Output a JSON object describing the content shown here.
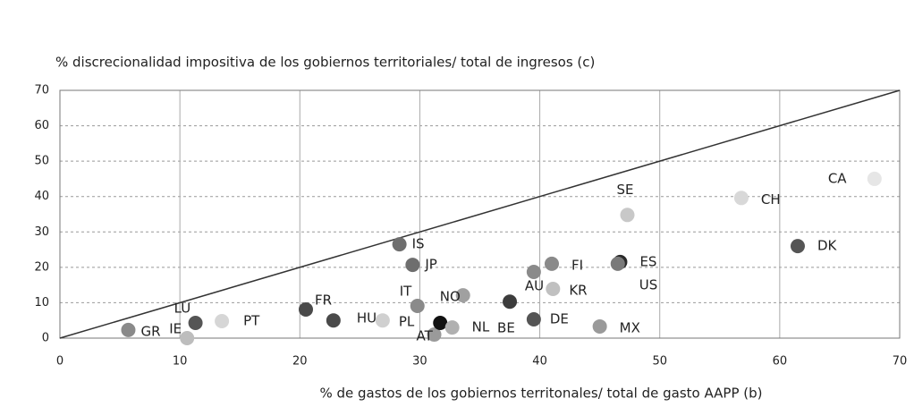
{
  "chart_data": {
    "type": "scatter",
    "title": "% discrecionalidad impositiva de los gobiernos territoriales/ total de ingresos (c)",
    "xlabel": "% de gastos de los gobiernos territonales/ total de gasto AAPP (b)",
    "labels": [
      "GR",
      "LU",
      "IE",
      "PT",
      "FR",
      "HU",
      "PL",
      "IS",
      "JP",
      "IT",
      "AT",
      null,
      "NL",
      "NO",
      "AU",
      "BE",
      "DE",
      "FI",
      "KR",
      "SE",
      "ES",
      "US",
      "MX",
      "CH",
      "CA",
      "DK"
    ],
    "x": [
      5.7,
      11.3,
      10.6,
      13.5,
      20.5,
      22.8,
      26.9,
      28.3,
      29.4,
      29.8,
      31.2,
      31.7,
      32.7,
      33.6,
      39.5,
      37.5,
      39.5,
      41,
      41.1,
      47.3,
      46.7,
      46.5,
      45,
      56.8,
      67.9,
      61.5
    ],
    "y": [
      2.3,
      4.3,
      0,
      4.8,
      8.1,
      5,
      5,
      26.5,
      20.7,
      9.1,
      1,
      4.3,
      3,
      12.1,
      18.7,
      10.3,
      5.3,
      21,
      13.9,
      34.8,
      21.5,
      21,
      3.3,
      39.6,
      45,
      26
    ],
    "colors": [
      "#8a8a8a",
      "#555555",
      "#bdbdbd",
      "#d6d6d6",
      "#4a4a4a",
      "#4a4a4a",
      "#d0d0d0",
      "#6e6e6e",
      "#6e6e6e",
      "#8a8a8a",
      "#9a9a9a",
      "#111111",
      "#b0b0b0",
      "#a0a0a0",
      "#8a8a8a",
      "#3c3c3c",
      "#555555",
      "#8a8a8a",
      "#c0c0c0",
      "#c8c8c8",
      "#2a2a2a",
      "#7a7a7a",
      "#9a9a9a",
      "#d8d8d8",
      "#e6e6e6",
      "#555555"
    ],
    "xlim": [
      0,
      70
    ],
    "ylim": [
      0,
      70
    ],
    "xticks": [
      0,
      10,
      20,
      30,
      40,
      50,
      60,
      70
    ],
    "yticks": [
      0,
      10,
      20,
      30,
      40,
      50,
      60,
      70
    ],
    "grid": true
  }
}
